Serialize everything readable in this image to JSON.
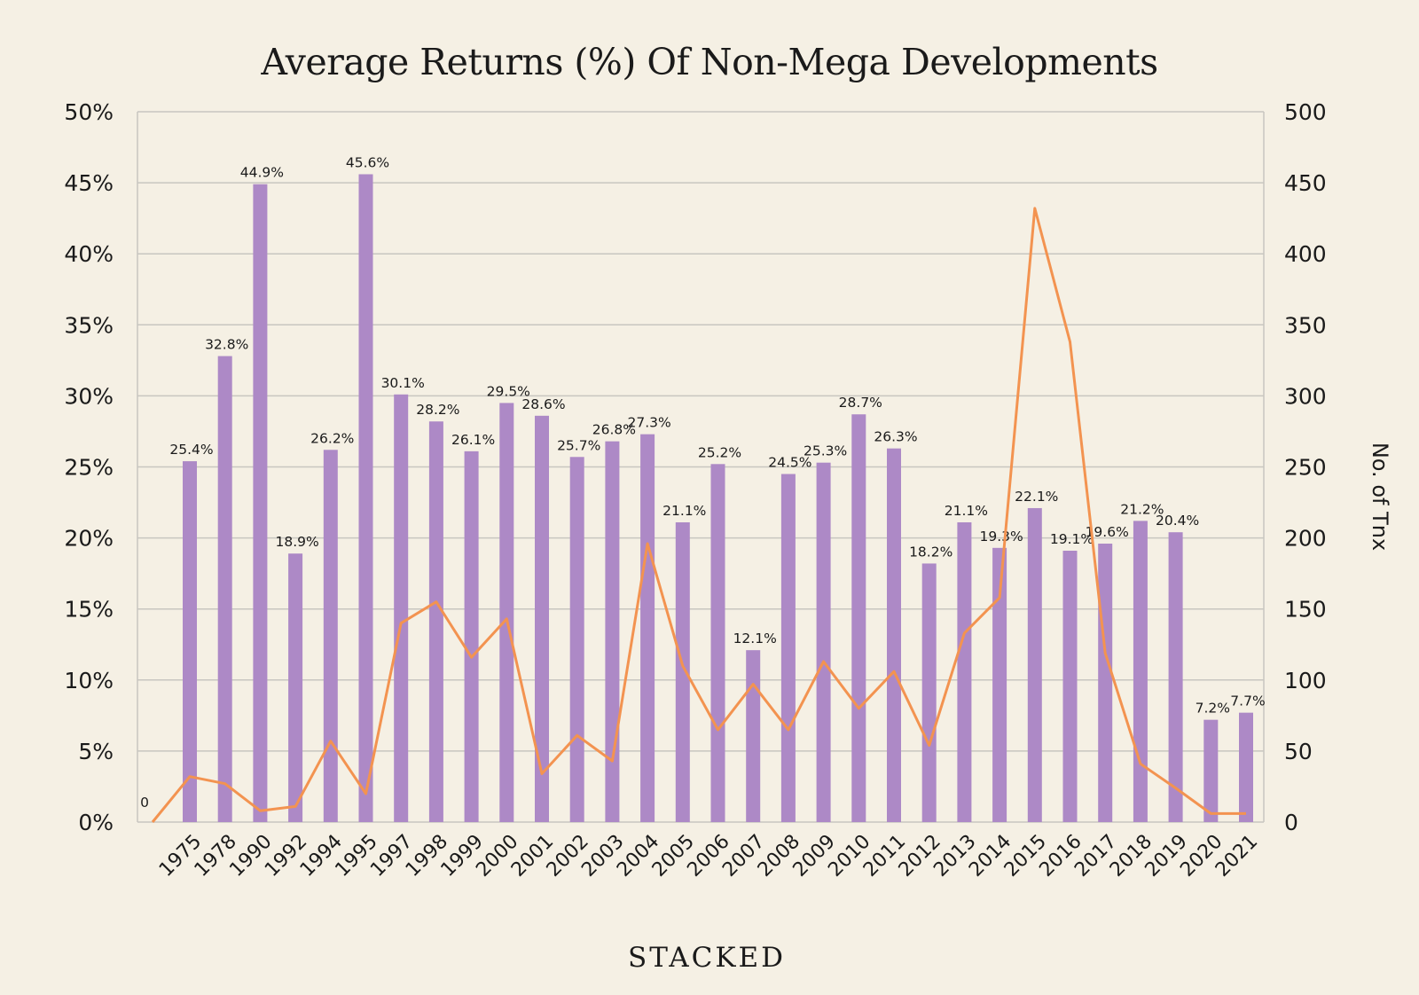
{
  "colors": {
    "background": "#f5f0e4",
    "bar": "#ad89c6",
    "line": "#f39350",
    "grid": "#c8c6c0",
    "text": "#1a1a1a"
  },
  "brand": "STACKED",
  "chart_data": {
    "type": "bar",
    "title": "Average Returns (%) Of Non-Mega Developments",
    "xlabel": "",
    "ylabel": "",
    "y2label": "No. of Tnx",
    "grid": true,
    "legend": "none",
    "ylim": [
      0,
      50
    ],
    "y2lim": [
      0,
      500
    ],
    "yticks": [
      "0%",
      "5%",
      "10%",
      "15%",
      "20%",
      "25%",
      "30%",
      "35%",
      "40%",
      "45%",
      "50%"
    ],
    "y2ticks": [
      "0",
      "50",
      "100",
      "150",
      "200",
      "250",
      "300",
      "350",
      "400",
      "450",
      "500"
    ],
    "categories": [
      "1975",
      "1978",
      "1990",
      "1992",
      "1994",
      "1995",
      "1997",
      "1998",
      "1999",
      "2000",
      "2001",
      "2002",
      "2003",
      "2004",
      "2005",
      "2006",
      "2007",
      "2008",
      "2009",
      "2010",
      "2011",
      "2012",
      "2013",
      "2014",
      "2015",
      "2016",
      "2017",
      "2018",
      "2019",
      "2020",
      "2021"
    ],
    "series": [
      {
        "type": "bar",
        "axis": "left",
        "values": [
          25.4,
          32.8,
          44.9,
          18.9,
          26.2,
          45.6,
          30.1,
          28.2,
          26.1,
          29.5,
          28.6,
          25.7,
          26.8,
          27.3,
          21.1,
          25.2,
          12.1,
          24.5,
          25.3,
          28.7,
          26.3,
          18.2,
          21.1,
          19.3,
          22.1,
          19.1,
          19.6,
          21.2,
          20.4,
          7.2,
          7.7
        ],
        "labels": [
          "25.4%",
          "32.8%",
          "44.9%",
          "18.9%",
          "26.2%",
          "45.6%",
          "30.1%",
          "28.2%",
          "26.1%",
          "29.5%",
          "28.6%",
          "25.7%",
          "26.8%",
          "27.3%",
          "21.1%",
          "25.2%",
          "12.1%",
          "24.5%",
          "25.3%",
          "28.7%",
          "26.3%",
          "18.2%",
          "21.1%",
          "19.3%",
          "22.1%",
          "19.1%",
          "19.6%",
          "21.2%",
          "20.4%",
          "7.2%",
          "7.7%"
        ]
      },
      {
        "type": "line",
        "axis": "right",
        "x": [
          "0",
          "1975",
          "1978",
          "1990",
          "1992",
          "1994",
          "1995",
          "1997",
          "1998",
          "1999",
          "2000",
          "2001",
          "2002",
          "2003",
          "2004",
          "2005",
          "2006",
          "2007",
          "2008",
          "2009",
          "2010",
          "2011",
          "2012",
          "2013",
          "2014",
          "2015",
          "2016",
          "2017",
          "2018",
          "2019",
          "2020",
          "2021"
        ],
        "values": [
          0,
          32,
          27,
          8,
          11,
          57,
          20,
          140,
          155,
          116,
          143,
          34,
          61,
          43,
          196,
          110,
          65,
          97,
          65,
          113,
          80,
          106,
          54,
          133,
          158,
          432,
          338,
          119,
          41,
          24,
          6,
          6
        ]
      }
    ],
    "annotations": [
      {
        "text": "0"
      }
    ]
  }
}
